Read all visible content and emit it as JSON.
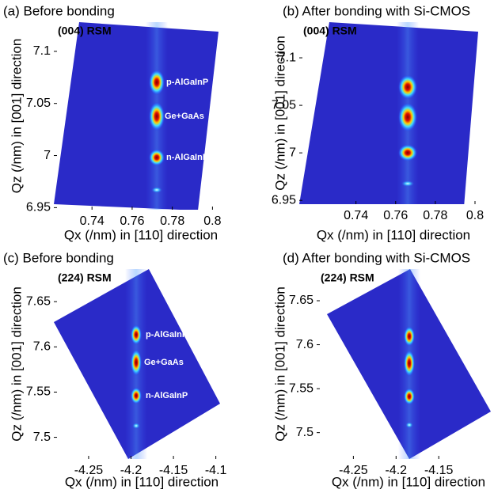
{
  "chart_data": [
    {
      "type": "heatmap",
      "title": "(a) Before bonding",
      "label": "(004) RSM",
      "xlabel": "Qx (/nm) in [110] direction",
      "ylabel": "Qz (/nm) in [001] direction",
      "xlim": [
        0.721,
        0.803
      ],
      "ylim": [
        6.948,
        7.128
      ],
      "xticks": [
        0.74,
        0.76,
        0.78,
        0.8
      ],
      "yticks": [
        6.95,
        7,
        7.05,
        7.1
      ],
      "annotations": [
        "p-AlGaInP",
        "Ge+GaAs",
        "n-AlGaInP"
      ]
    },
    {
      "type": "heatmap",
      "title": "(b) After bonding with Si-CMOS",
      "label": "(004) RSM",
      "xlabel": "Qx (/nm) in [110] direction",
      "ylabel": "Qz (/nm) in [001] direction",
      "xlim": [
        0.7114,
        0.8016
      ],
      "ylim": [
        6.946,
        7.1375
      ],
      "xticks": [
        0.74,
        0.76,
        0.78,
        0.8
      ],
      "yticks": [
        6.95,
        7,
        7.05,
        7.1
      ]
    },
    {
      "type": "heatmap",
      "title": "(c) Before bonding",
      "label": "(224) RSM",
      "xlabel": "Qx (/nm) in [110] direction",
      "ylabel": "Qz (/nm) in [001] direction",
      "xlim": [
        -4.291,
        -4.095
      ],
      "ylim": [
        7.476,
        7.686
      ],
      "xticks": [
        -4.25,
        -4.2,
        -4.15,
        -4.1
      ],
      "yticks": [
        7.5,
        7.55,
        7.6,
        7.65
      ],
      "annotations": [
        "p-AlGaInP",
        "Ge+GaAs",
        "n-AlGaInP"
      ]
    },
    {
      "type": "heatmap",
      "title": "(d) After bonding with Si-CMOS",
      "label": "(224) RSM",
      "xlabel": "Qx (/nm) in [110] direction",
      "ylabel": "Qz (/nm) in [001] direction",
      "xlim": [
        -4.293,
        -4.089
      ],
      "ylim": [
        7.47,
        7.686
      ],
      "xticks": [
        -4.25,
        -4.2,
        -4.15
      ],
      "yticks": [
        7.5,
        7.55,
        7.6,
        7.65
      ]
    }
  ]
}
